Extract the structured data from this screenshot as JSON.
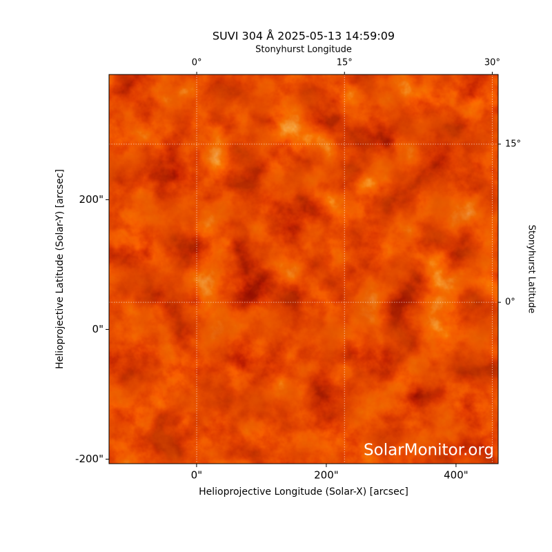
{
  "chart_data": {
    "type": "image",
    "title": "SUVI 304 Å 2025-05-13 14:59:09",
    "xlabel": "Helioprojective Longitude (Solar-X) [arcsec]",
    "ylabel": "Helioprojective Latitude (Solar-Y) [arcsec]",
    "x2label": "Stonyhurst Longitude",
    "y2label": "Stonyhurst Latitude",
    "xlim": [
      -135,
      465
    ],
    "ylim": [
      -207,
      393
    ],
    "xticks": [
      {
        "value": 0,
        "label": "0\""
      },
      {
        "value": 200,
        "label": "200\""
      },
      {
        "value": 400,
        "label": "400\""
      }
    ],
    "yticks": [
      {
        "value": -200,
        "label": "-200\""
      },
      {
        "value": 0,
        "label": "0\""
      },
      {
        "value": 200,
        "label": "200\""
      }
    ],
    "x2lim": [
      -8.9,
      30.6
    ],
    "x2ticks": [
      {
        "value": 0,
        "label": "0°"
      },
      {
        "value": 15,
        "label": "15°"
      },
      {
        "value": 30,
        "label": "30°"
      }
    ],
    "y2lim": [
      -15.3,
      21.6
    ],
    "y2ticks": [
      {
        "value": 0,
        "label": "0°"
      },
      {
        "value": 15,
        "label": "15°"
      }
    ],
    "grid": true,
    "watermark": "SolarMonitor.org"
  }
}
